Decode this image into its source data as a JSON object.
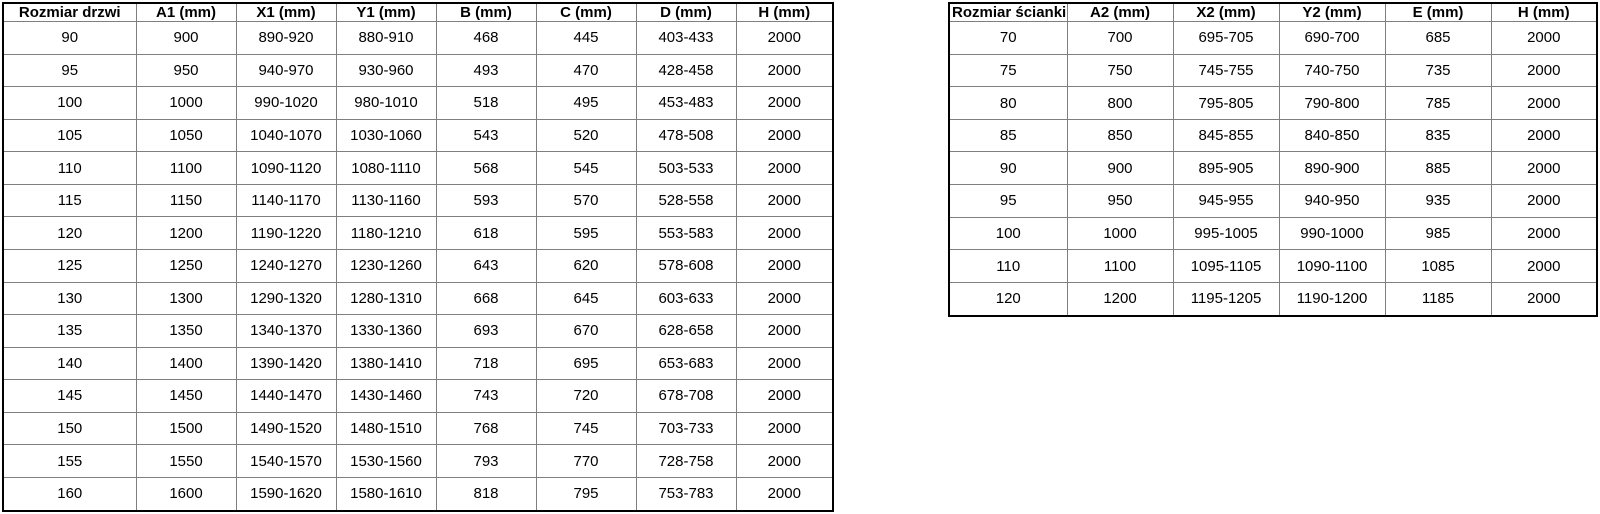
{
  "colors": {
    "background": "#ffffff",
    "border_outer": "#000000",
    "border_inner": "#7f7f7f",
    "text": "#000000"
  },
  "tables": [
    {
      "id": "door-size-table",
      "headers": [
        "Rozmiar drzwi",
        "A1 (mm)",
        "X1 (mm)",
        "Y1 (mm)",
        "B (mm)",
        "C (mm)",
        "D (mm)",
        "H (mm)"
      ],
      "rows": [
        [
          "90",
          "900",
          "890-920",
          "880-910",
          "468",
          "445",
          "403-433",
          "2000"
        ],
        [
          "95",
          "950",
          "940-970",
          "930-960",
          "493",
          "470",
          "428-458",
          "2000"
        ],
        [
          "100",
          "1000",
          "990-1020",
          "980-1010",
          "518",
          "495",
          "453-483",
          "2000"
        ],
        [
          "105",
          "1050",
          "1040-1070",
          "1030-1060",
          "543",
          "520",
          "478-508",
          "2000"
        ],
        [
          "110",
          "1100",
          "1090-1120",
          "1080-1110",
          "568",
          "545",
          "503-533",
          "2000"
        ],
        [
          "115",
          "1150",
          "1140-1170",
          "1130-1160",
          "593",
          "570",
          "528-558",
          "2000"
        ],
        [
          "120",
          "1200",
          "1190-1220",
          "1180-1210",
          "618",
          "595",
          "553-583",
          "2000"
        ],
        [
          "125",
          "1250",
          "1240-1270",
          "1230-1260",
          "643",
          "620",
          "578-608",
          "2000"
        ],
        [
          "130",
          "1300",
          "1290-1320",
          "1280-1310",
          "668",
          "645",
          "603-633",
          "2000"
        ],
        [
          "135",
          "1350",
          "1340-1370",
          "1330-1360",
          "693",
          "670",
          "628-658",
          "2000"
        ],
        [
          "140",
          "1400",
          "1390-1420",
          "1380-1410",
          "718",
          "695",
          "653-683",
          "2000"
        ],
        [
          "145",
          "1450",
          "1440-1470",
          "1430-1460",
          "743",
          "720",
          "678-708",
          "2000"
        ],
        [
          "150",
          "1500",
          "1490-1520",
          "1480-1510",
          "768",
          "745",
          "703-733",
          "2000"
        ],
        [
          "155",
          "1550",
          "1540-1570",
          "1530-1560",
          "793",
          "770",
          "728-758",
          "2000"
        ],
        [
          "160",
          "1600",
          "1590-1620",
          "1580-1610",
          "818",
          "795",
          "753-783",
          "2000"
        ]
      ]
    },
    {
      "id": "wall-size-table",
      "headers": [
        "Rozmiar ścianki",
        "A2 (mm)",
        "X2 (mm)",
        "Y2 (mm)",
        "E (mm)",
        "H (mm)"
      ],
      "rows": [
        [
          "70",
          "700",
          "695-705",
          "690-700",
          "685",
          "2000"
        ],
        [
          "75",
          "750",
          "745-755",
          "740-750",
          "735",
          "2000"
        ],
        [
          "80",
          "800",
          "795-805",
          "790-800",
          "785",
          "2000"
        ],
        [
          "85",
          "850",
          "845-855",
          "840-850",
          "835",
          "2000"
        ],
        [
          "90",
          "900",
          "895-905",
          "890-900",
          "885",
          "2000"
        ],
        [
          "95",
          "950",
          "945-955",
          "940-950",
          "935",
          "2000"
        ],
        [
          "100",
          "1000",
          "995-1005",
          "990-1000",
          "985",
          "2000"
        ],
        [
          "110",
          "1100",
          "1095-1105",
          "1090-1100",
          "1085",
          "2000"
        ],
        [
          "120",
          "1200",
          "1195-1205",
          "1190-1200",
          "1185",
          "2000"
        ]
      ]
    }
  ]
}
